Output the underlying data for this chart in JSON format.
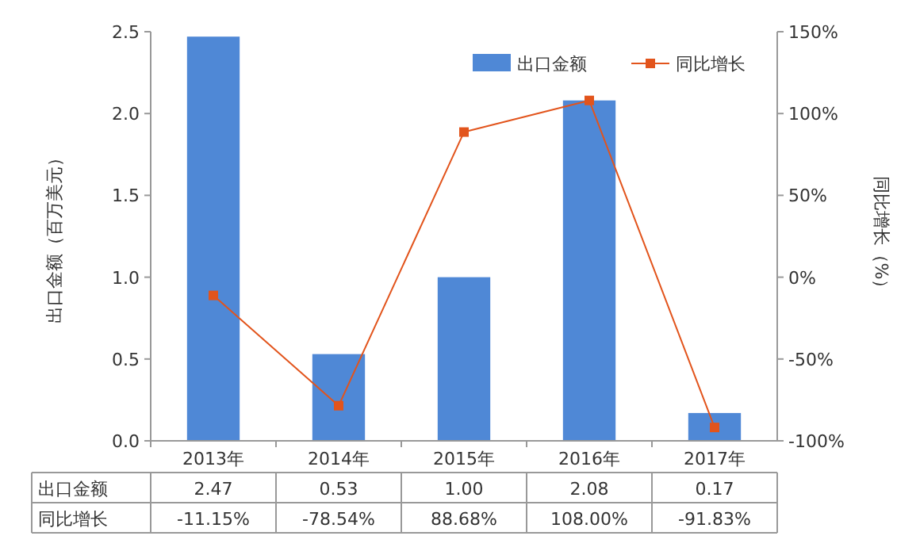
{
  "chart_data": {
    "type": "bar",
    "categories": [
      "2013年",
      "2014年",
      "2015年",
      "2016年",
      "2017年"
    ],
    "series": [
      {
        "name": "出口金额",
        "color": "#4f88d6",
        "values": [
          2.47,
          0.53,
          1.0,
          2.08,
          0.17
        ],
        "value_labels": [
          "2.47",
          "0.53",
          "1.00",
          "2.08",
          "0.17"
        ]
      },
      {
        "name": "同比增长",
        "type": "line",
        "axis": "y2",
        "color": "#e2541c",
        "values": [
          -11.15,
          -78.54,
          88.68,
          108.0,
          -91.83
        ],
        "value_labels": [
          "-11.15%",
          "-78.54%",
          "88.68%",
          "108.00%",
          "-91.83%"
        ]
      }
    ],
    "ylabel": "出口金额（百万美元）",
    "y2label": "同比增长（%）",
    "ylim": [
      0,
      2.5
    ],
    "yticks": [
      {
        "value": 0,
        "label": "0.0"
      },
      {
        "value": 0.5,
        "label": "0.5"
      },
      {
        "value": 1,
        "label": "1.0"
      },
      {
        "value": 1.5,
        "label": "1.5"
      },
      {
        "value": 2,
        "label": "2.0"
      },
      {
        "value": 2.5,
        "label": "2.5"
      }
    ],
    "y2lim": [
      -100,
      150
    ],
    "y2ticks": [
      {
        "value": -100,
        "label": "-100%"
      },
      {
        "value": -50,
        "label": "-50%"
      },
      {
        "value": 0,
        "label": "0%"
      },
      {
        "value": 50,
        "label": "50%"
      },
      {
        "value": 100,
        "label": "100%"
      },
      {
        "value": 150,
        "label": "150%"
      }
    ],
    "legend": "top right",
    "marker": "square",
    "line_style": "solid",
    "grid": false
  }
}
